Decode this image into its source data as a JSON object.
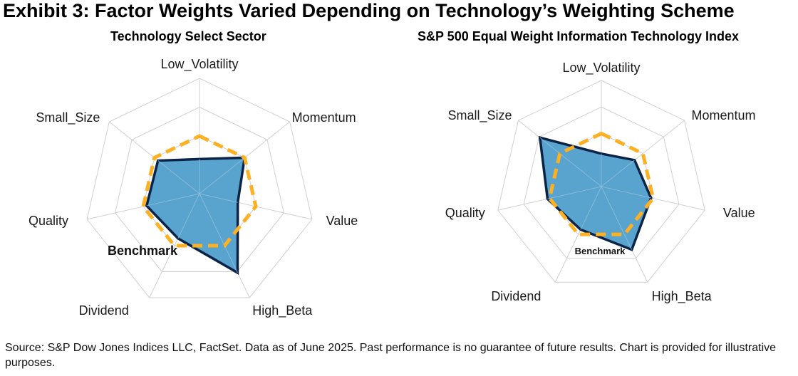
{
  "title": "Exhibit 3: Factor Weights Varied Depending on Technology’s Weighting Scheme",
  "source_note": "Source: S&P Dow Jones Indices LLC, FactSet. Data as of June 2025. Past performance is no guarantee of future results. Chart is provided for illustrative purposes.",
  "colors": {
    "series_fill": "#58a4cf",
    "series_line": "#0b2347",
    "benchmark_line": "#fdb022",
    "grid": "#d0d0d0"
  },
  "chart_data": [
    {
      "type": "radar",
      "title": "Technology Select Sector",
      "axes": [
        "Low_Volatility",
        "Momentum",
        "Value",
        "High_Beta",
        "Dividend",
        "Quality",
        "Small_Size"
      ],
      "range": [
        0,
        1
      ],
      "grid_rings": 4,
      "series": [
        {
          "name": "Technology Select Sector",
          "values": [
            0.3,
            0.5,
            0.34,
            0.76,
            0.43,
            0.47,
            0.46
          ]
        },
        {
          "name": "Benchmark",
          "values": [
            0.5,
            0.5,
            0.5,
            0.5,
            0.5,
            0.5,
            0.5
          ]
        }
      ],
      "annotation": "Benchmark"
    },
    {
      "type": "radar",
      "title": "S&P 500 Equal Weight Information Technology Index",
      "axes": [
        "Low_Volatility",
        "Momentum",
        "Value",
        "High_Beta",
        "Dividend",
        "Quality",
        "Small_Size"
      ],
      "range": [
        0,
        1
      ],
      "grid_rings": 4,
      "series": [
        {
          "name": "S&P 500 Equal Weight Information Technology Index",
          "values": [
            0.31,
            0.4,
            0.48,
            0.66,
            0.45,
            0.52,
            0.74
          ]
        },
        {
          "name": "Benchmark",
          "values": [
            0.5,
            0.5,
            0.5,
            0.5,
            0.5,
            0.5,
            0.5
          ]
        }
      ],
      "annotation": "Benchmark"
    }
  ]
}
